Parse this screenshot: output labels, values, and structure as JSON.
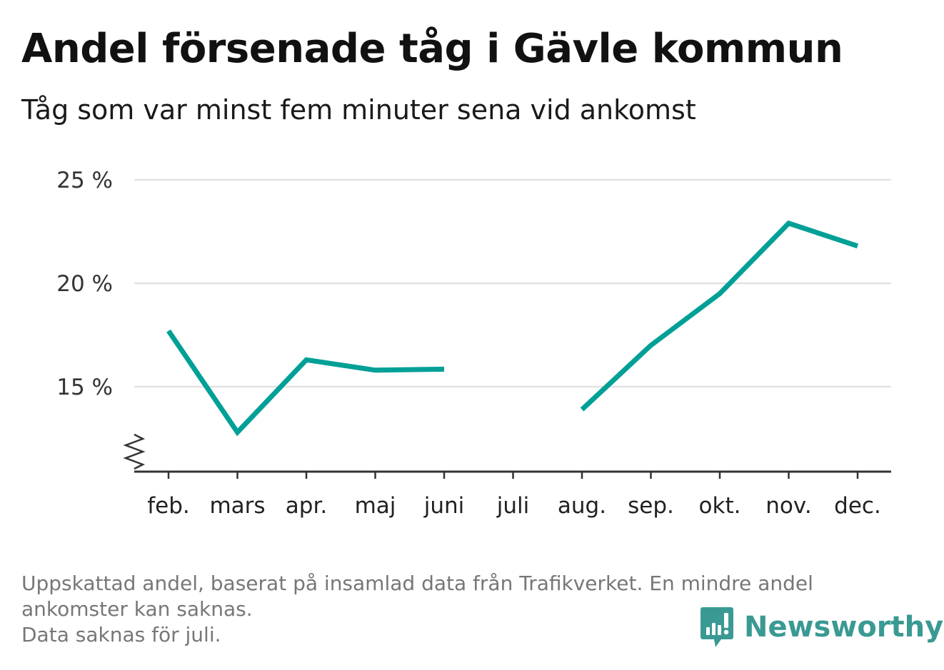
{
  "title": "Andel försenade tåg i Gävle kommun",
  "subtitle": "Tåg som var minst fem minuter sena vid ankomst",
  "footnote": {
    "line1": "Uppskattad andel, baserat på insamlad data från Trafikverket. En mindre andel",
    "line2": "ankomster kan saknas.",
    "line3": "Data saknas för juli."
  },
  "brand": {
    "name": "Newsworthy",
    "color": "#3a9a93"
  },
  "colors": {
    "line": "#00a097",
    "grid": "#e2e2e2",
    "axis": "#333333"
  },
  "chart_data": {
    "type": "line",
    "categories": [
      "feb.",
      "mars",
      "apr.",
      "maj",
      "juni",
      "juli",
      "aug.",
      "sep.",
      "okt.",
      "nov.",
      "dec."
    ],
    "series": [
      {
        "values": [
          17.7,
          12.8,
          16.3,
          15.8,
          15.85,
          null,
          13.9,
          17.0,
          19.5,
          22.9,
          21.8
        ]
      }
    ],
    "yticks": [
      15,
      20,
      25
    ],
    "ytick_labels": [
      "15 %",
      "20 %",
      "25 %"
    ],
    "ylim": [
      11,
      25
    ],
    "y_axis_break": true,
    "grid": true,
    "legend": "none"
  }
}
